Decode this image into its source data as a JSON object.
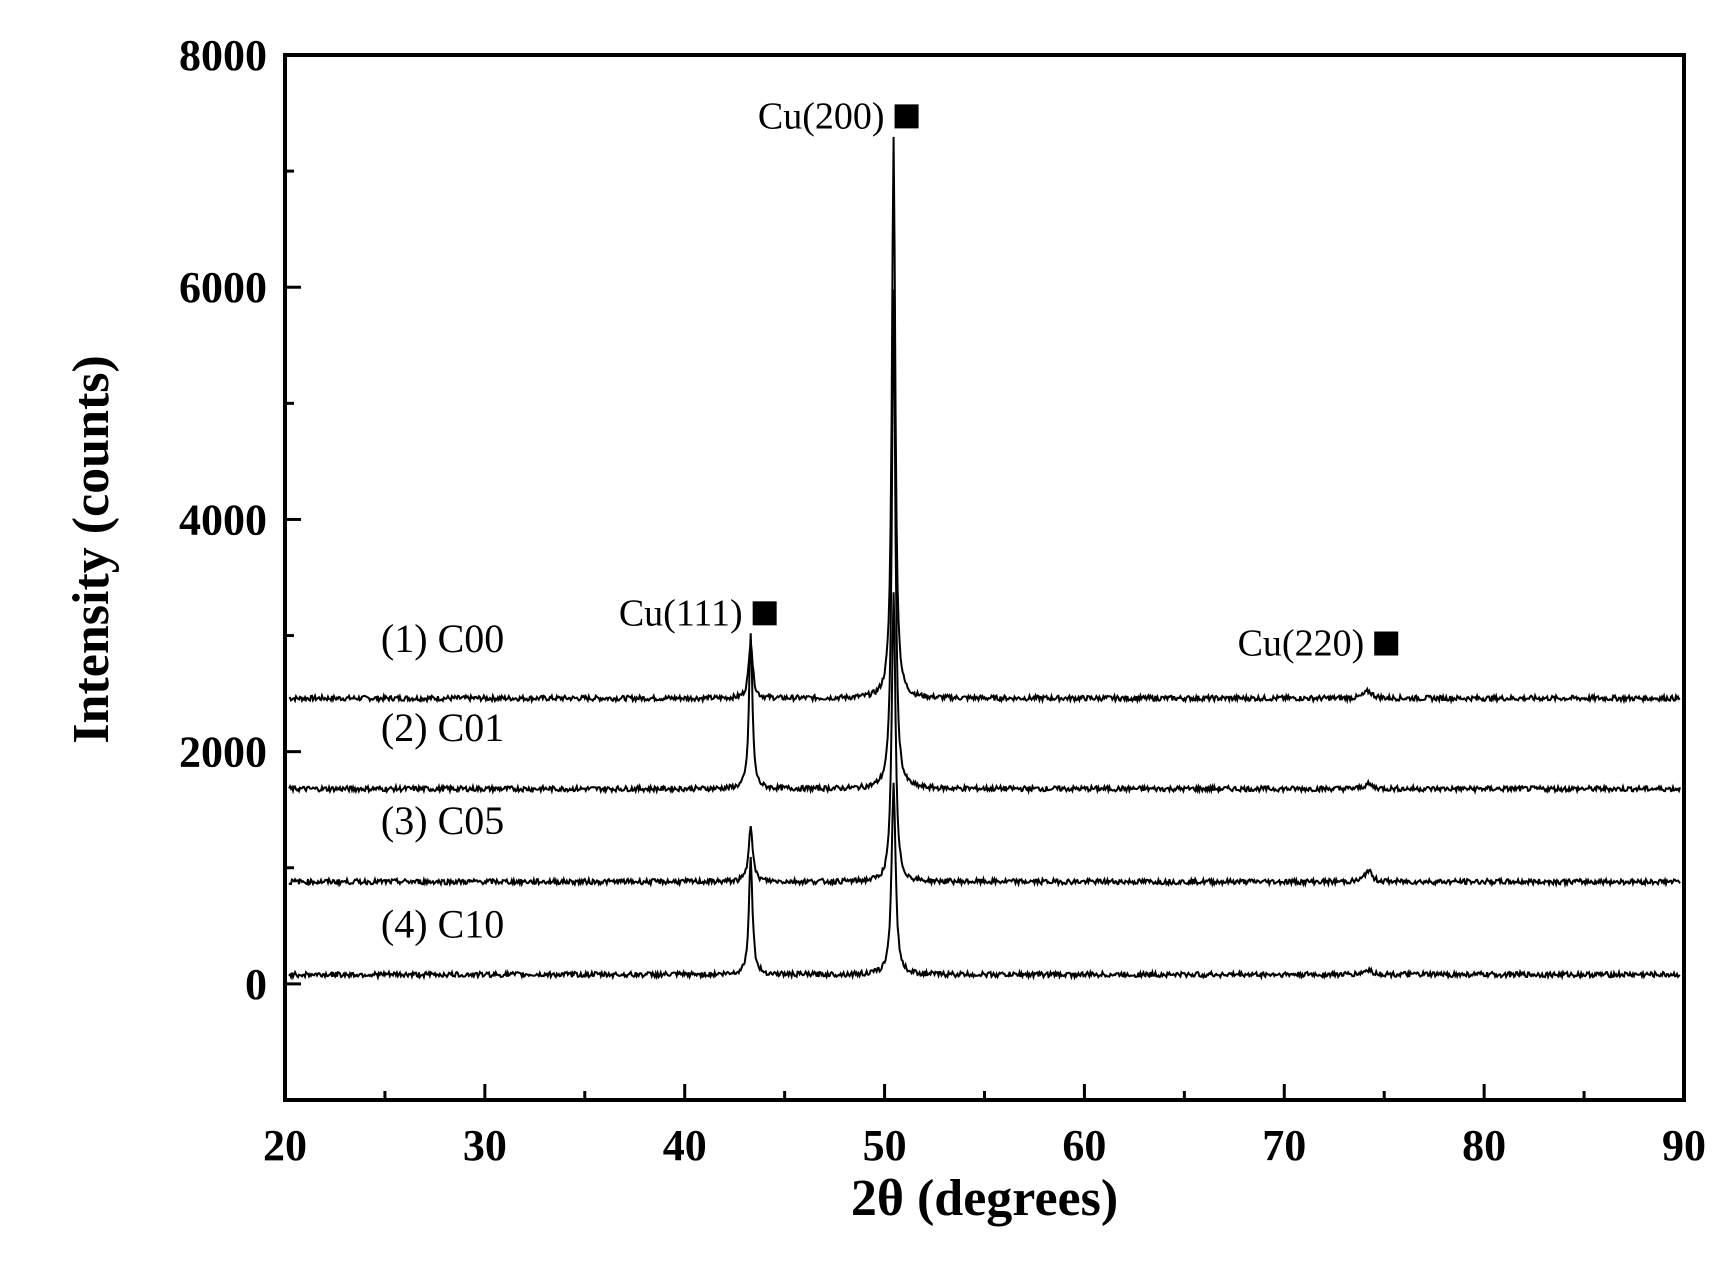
{
  "chart_data": {
    "type": "line",
    "title": "",
    "xlabel": "2θ (degrees)",
    "ylabel": "Intensity (counts)",
    "xlim": [
      20,
      90
    ],
    "ylim": [
      -1000,
      8000
    ],
    "x_ticks": [
      20,
      30,
      40,
      50,
      60,
      70,
      80,
      90
    ],
    "y_ticks": [
      0,
      2000,
      4000,
      6000,
      8000
    ],
    "x_minor_step": 5,
    "y_minor_step": 1000,
    "grid": false,
    "legend": "none",
    "line_color": "#000000",
    "annotations": [
      {
        "text": "Cu(111)",
        "x": 43.3,
        "y": 3200
      },
      {
        "text": "Cu(200)",
        "x": 50.4,
        "y": 7480
      },
      {
        "text": "Cu(220)",
        "x": 74.4,
        "y": 2940
      }
    ],
    "series": [
      {
        "name": "(1) C00",
        "baseline": 2460,
        "label_y": 2860,
        "peaks": [
          {
            "x": 43.3,
            "height": 500,
            "width": 0.12
          },
          {
            "x": 50.45,
            "height": 4850,
            "width": 0.1
          },
          {
            "x": 74.2,
            "height": 60,
            "width": 0.25
          }
        ]
      },
      {
        "name": "(2) C01",
        "baseline": 1680,
        "label_y": 2090,
        "peaks": [
          {
            "x": 43.3,
            "height": 1350,
            "width": 0.1
          },
          {
            "x": 50.45,
            "height": 4300,
            "width": 0.1
          },
          {
            "x": 74.2,
            "height": 40,
            "width": 0.25
          }
        ]
      },
      {
        "name": "(3) C05",
        "baseline": 880,
        "label_y": 1290,
        "peaks": [
          {
            "x": 43.3,
            "height": 500,
            "width": 0.12
          },
          {
            "x": 50.45,
            "height": 2500,
            "width": 0.11
          },
          {
            "x": 74.2,
            "height": 100,
            "width": 0.2
          }
        ]
      },
      {
        "name": "(4) C10",
        "baseline": 80,
        "label_y": 400,
        "peaks": [
          {
            "x": 43.3,
            "height": 1000,
            "width": 0.11
          },
          {
            "x": 50.45,
            "height": 1650,
            "width": 0.12
          },
          {
            "x": 74.2,
            "height": 40,
            "width": 0.25
          }
        ]
      }
    ]
  }
}
